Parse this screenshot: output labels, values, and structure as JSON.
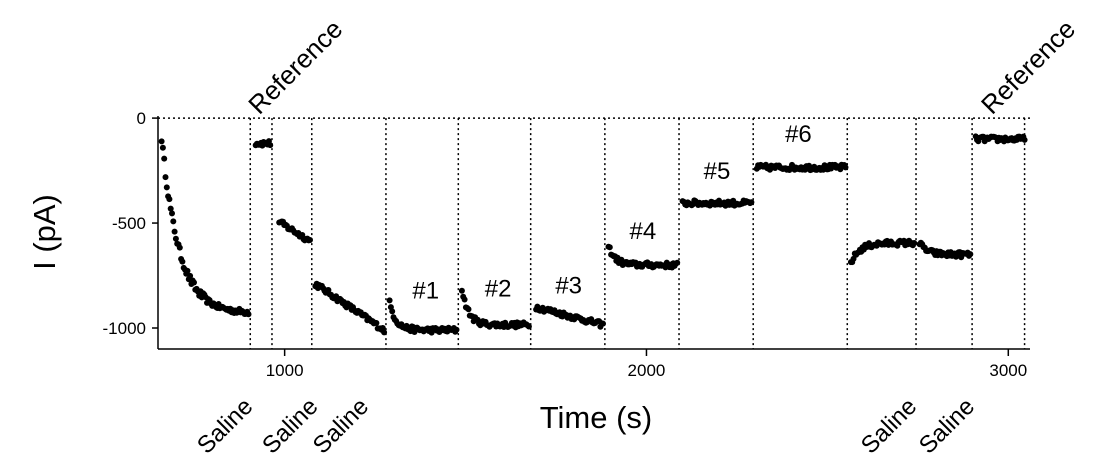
{
  "chart_data": {
    "type": "scatter",
    "title": "",
    "xlabel": "Time (s)",
    "ylabel": "I (pA)",
    "xlim": [
      650,
      3060
    ],
    "ylim": [
      -1100,
      10
    ],
    "x_ticks": [
      {
        "value": 1000,
        "label": "1000"
      },
      {
        "value": 2000,
        "label": "2000"
      },
      {
        "value": 3000,
        "label": "3000"
      }
    ],
    "y_ticks": [
      {
        "value": 0,
        "label": "0"
      },
      {
        "value": -500,
        "label": "-500"
      },
      {
        "value": -1000,
        "label": "-1000"
      }
    ],
    "zero_line": 0,
    "grid": false,
    "dividers": [
      905,
      965,
      1075,
      1280,
      1480,
      1680,
      1885,
      2090,
      2295,
      2555,
      2745,
      2900,
      3045
    ],
    "segments": [
      {
        "x0": 660,
        "x1": 900,
        "kind": "decay",
        "y0": -95,
        "y1": -930,
        "tau": 48
      },
      {
        "x0": 920,
        "x1": 960,
        "kind": "flat",
        "y": -120
      },
      {
        "x0": 985,
        "x1": 1070,
        "kind": "linear",
        "y0": -495,
        "y1": -585
      },
      {
        "x0": 1085,
        "x1": 1275,
        "kind": "linear",
        "y0": -790,
        "y1": -1010
      },
      {
        "x0": 1290,
        "x1": 1475,
        "kind": "dip",
        "start": -880,
        "y": -1010
      },
      {
        "x0": 1490,
        "x1": 1675,
        "kind": "dip",
        "start": -815,
        "y": -985
      },
      {
        "x0": 1695,
        "x1": 1880,
        "kind": "linear",
        "y0": -900,
        "y1": -985
      },
      {
        "x0": 1895,
        "x1": 2085,
        "kind": "dip",
        "start": -610,
        "y": -700
      },
      {
        "x0": 2100,
        "x1": 2290,
        "kind": "flat",
        "y": -405
      },
      {
        "x0": 2305,
        "x1": 2550,
        "kind": "flat",
        "y": -235
      },
      {
        "x0": 2565,
        "x1": 2740,
        "kind": "rise",
        "start": -690,
        "y": -595
      },
      {
        "x0": 2755,
        "x1": 2895,
        "kind": "rise",
        "start": -595,
        "y": -650
      },
      {
        "x0": 2910,
        "x1": 3045,
        "kind": "flat",
        "y": -100
      }
    ],
    "annotations": [
      {
        "text": "Reference",
        "x": 930,
        "y": 12,
        "angle": -45
      },
      {
        "text": "Reference",
        "x": 2955,
        "y": 12,
        "angle": -45
      },
      {
        "text": "#1",
        "x": 1390,
        "y": -860
      },
      {
        "text": "#2",
        "x": 1590,
        "y": -850
      },
      {
        "text": "#3",
        "x": 1785,
        "y": -835
      },
      {
        "text": "#4",
        "x": 1990,
        "y": -575
      },
      {
        "text": "#5",
        "x": 2195,
        "y": -290
      },
      {
        "text": "#6",
        "x": 2420,
        "y": -115
      }
    ],
    "bottom_labels": [
      {
        "text": "Saline",
        "x": 785
      },
      {
        "text": "Saline",
        "x": 965
      },
      {
        "text": "Saline",
        "x": 1105
      },
      {
        "text": "Saline",
        "x": 2620
      },
      {
        "text": "Saline",
        "x": 2780
      }
    ]
  }
}
